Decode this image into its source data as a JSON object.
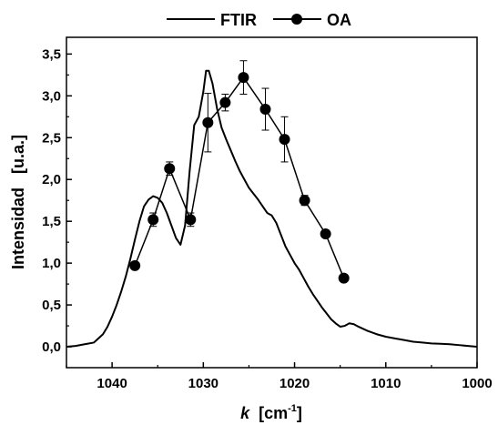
{
  "chart_data": {
    "type": "line",
    "title": "",
    "xlabel": {
      "symbol": "k",
      "unit_open": "[cm",
      "unit_exp": "-1",
      "unit_close": "]"
    },
    "ylabel": "Intensidad   [u.a.]",
    "xlim": [
      1045,
      1000
    ],
    "ylim": [
      -0.25,
      3.7
    ],
    "x_reversed": true,
    "x_ticks": [
      1040,
      1030,
      1020,
      1010,
      1000
    ],
    "x_tick_labels": [
      "1040",
      "1030",
      "1020",
      "1010",
      "1000"
    ],
    "y_ticks": [
      0.0,
      0.5,
      1.0,
      1.5,
      2.0,
      2.5,
      3.0,
      3.5
    ],
    "y_tick_labels": [
      "0,0",
      "0,5",
      "1,0",
      "1,5",
      "2,0",
      "2,5",
      "3,0",
      "3,5"
    ],
    "grid": false,
    "legend_position": "top-center",
    "series": [
      {
        "name": "FTIR",
        "style": "line",
        "color": "#000000",
        "x": [
          1045,
          1044,
          1043,
          1042,
          1041.5,
          1041,
          1040.5,
          1040,
          1039.5,
          1039,
          1038.5,
          1038,
          1037.5,
          1037,
          1036.5,
          1036,
          1035.5,
          1035,
          1034.5,
          1034,
          1033.5,
          1033,
          1032.5,
          1032,
          1031.5,
          1031,
          1030.5,
          1030,
          1029.7,
          1029.4,
          1029,
          1028.5,
          1028,
          1027.5,
          1027,
          1026.5,
          1026,
          1025.5,
          1025,
          1024.5,
          1024,
          1023.5,
          1023,
          1022.5,
          1022,
          1021.5,
          1021,
          1020.5,
          1020,
          1019.5,
          1019,
          1018.5,
          1018,
          1017.5,
          1017,
          1016.5,
          1016,
          1015.5,
          1015,
          1014.5,
          1014,
          1013.5,
          1013,
          1012,
          1011,
          1010,
          1009,
          1008,
          1007,
          1006,
          1005,
          1004,
          1003,
          1002,
          1001,
          1000
        ],
        "y": [
          0.0,
          0.01,
          0.03,
          0.05,
          0.1,
          0.15,
          0.24,
          0.36,
          0.5,
          0.66,
          0.84,
          1.05,
          1.28,
          1.5,
          1.68,
          1.76,
          1.8,
          1.78,
          1.72,
          1.6,
          1.45,
          1.3,
          1.22,
          1.45,
          2.1,
          2.65,
          2.75,
          3.05,
          3.3,
          3.3,
          3.15,
          2.85,
          2.62,
          2.48,
          2.35,
          2.22,
          2.1,
          2.0,
          1.9,
          1.83,
          1.76,
          1.68,
          1.6,
          1.57,
          1.48,
          1.34,
          1.2,
          1.1,
          1.0,
          0.92,
          0.82,
          0.72,
          0.63,
          0.55,
          0.47,
          0.4,
          0.33,
          0.28,
          0.24,
          0.25,
          0.28,
          0.27,
          0.24,
          0.19,
          0.15,
          0.12,
          0.1,
          0.08,
          0.06,
          0.05,
          0.04,
          0.035,
          0.03,
          0.02,
          0.01,
          0.0
        ]
      },
      {
        "name": "OA",
        "style": "line-marker",
        "color": "#000000",
        "x": [
          1037.5,
          1035.5,
          1033.7,
          1031.4,
          1029.5,
          1027.6,
          1025.6,
          1023.2,
          1021.1,
          1018.9,
          1016.6,
          1014.6
        ],
        "y": [
          0.97,
          1.52,
          2.13,
          1.52,
          2.68,
          2.92,
          3.22,
          2.84,
          2.48,
          1.75,
          1.35,
          0.82
        ],
        "error": [
          0.0,
          0.08,
          0.08,
          0.08,
          0.35,
          0.1,
          0.2,
          0.25,
          0.27,
          0.06,
          0.0,
          0.0
        ]
      }
    ]
  }
}
